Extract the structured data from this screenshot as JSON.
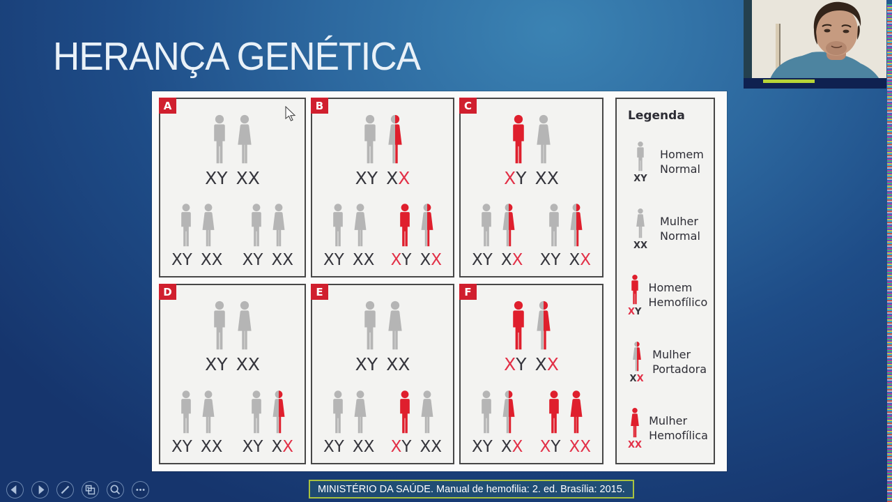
{
  "slide": {
    "title": "HERANÇA GENÉTICA",
    "citation": "MINISTÉRIO DA SAÚDE. Manual de hemofilia: 2. ed. Brasília: 2015."
  },
  "colors": {
    "figure_gray": "#b5b5b5",
    "figure_red": "#df1f2d",
    "chrom_dark": "#35353c",
    "chrom_red": "#e23047",
    "tag_red": "#d01f2e",
    "citation_border": "#a9c23f",
    "webcam_shirt": "#4d84a0",
    "webcam_wall": "#e9e5db",
    "webcam_indicator_green": "#b7d437"
  },
  "diagram": {
    "panels": [
      {
        "label": "A",
        "parents": [
          {
            "sex": "man",
            "variant": "normal",
            "chrom": "XY",
            "red": []
          },
          {
            "sex": "woman",
            "variant": "normal",
            "chrom": "XX",
            "red": []
          }
        ],
        "children": [
          [
            {
              "sex": "man",
              "variant": "normal",
              "chrom": "XY",
              "red": []
            },
            {
              "sex": "woman",
              "variant": "normal",
              "chrom": "XX",
              "red": []
            }
          ],
          [
            {
              "sex": "man",
              "variant": "normal",
              "chrom": "XY",
              "red": []
            },
            {
              "sex": "woman",
              "variant": "normal",
              "chrom": "XX",
              "red": []
            }
          ]
        ]
      },
      {
        "label": "B",
        "parents": [
          {
            "sex": "man",
            "variant": "normal",
            "chrom": "XY",
            "red": []
          },
          {
            "sex": "woman",
            "variant": "carrier",
            "chrom": "XX",
            "red": [
              1
            ]
          }
        ],
        "children": [
          [
            {
              "sex": "man",
              "variant": "normal",
              "chrom": "XY",
              "red": []
            },
            {
              "sex": "woman",
              "variant": "normal",
              "chrom": "XX",
              "red": []
            }
          ],
          [
            {
              "sex": "man",
              "variant": "affected",
              "chrom": "XY",
              "red": [
                0
              ]
            },
            {
              "sex": "woman",
              "variant": "carrier",
              "chrom": "XX",
              "red": [
                1
              ]
            }
          ]
        ]
      },
      {
        "label": "C",
        "parents": [
          {
            "sex": "man",
            "variant": "affected",
            "chrom": "XY",
            "red": [
              0
            ]
          },
          {
            "sex": "woman",
            "variant": "normal",
            "chrom": "XX",
            "red": []
          }
        ],
        "children": [
          [
            {
              "sex": "man",
              "variant": "normal",
              "chrom": "XY",
              "red": []
            },
            {
              "sex": "woman",
              "variant": "carrier",
              "chrom": "XX",
              "red": [
                1
              ]
            }
          ],
          [
            {
              "sex": "man",
              "variant": "normal",
              "chrom": "XY",
              "red": []
            },
            {
              "sex": "woman",
              "variant": "carrier",
              "chrom": "XX",
              "red": [
                1
              ]
            }
          ]
        ]
      },
      {
        "label": "D",
        "parents": [
          {
            "sex": "man",
            "variant": "normal",
            "chrom": "XY",
            "red": []
          },
          {
            "sex": "woman",
            "variant": "normal",
            "chrom": "XX",
            "red": []
          }
        ],
        "children": [
          [
            {
              "sex": "man",
              "variant": "normal",
              "chrom": "XY",
              "red": []
            },
            {
              "sex": "woman",
              "variant": "normal",
              "chrom": "XX",
              "red": []
            }
          ],
          [
            {
              "sex": "man",
              "variant": "normal",
              "chrom": "XY",
              "red": []
            },
            {
              "sex": "woman",
              "variant": "carrier",
              "chrom": "XX",
              "red": [
                1
              ]
            }
          ]
        ]
      },
      {
        "label": "E",
        "parents": [
          {
            "sex": "man",
            "variant": "normal",
            "chrom": "XY",
            "red": []
          },
          {
            "sex": "woman",
            "variant": "normal",
            "chrom": "XX",
            "red": []
          }
        ],
        "children": [
          [
            {
              "sex": "man",
              "variant": "normal",
              "chrom": "XY",
              "red": []
            },
            {
              "sex": "woman",
              "variant": "normal",
              "chrom": "XX",
              "red": []
            }
          ],
          [
            {
              "sex": "man",
              "variant": "affected",
              "chrom": "XY",
              "red": [
                0
              ]
            },
            {
              "sex": "woman",
              "variant": "normal",
              "chrom": "XX",
              "red": []
            }
          ]
        ]
      },
      {
        "label": "F",
        "parents": [
          {
            "sex": "man",
            "variant": "affected",
            "chrom": "XY",
            "red": [
              0
            ]
          },
          {
            "sex": "woman",
            "variant": "carrier",
            "chrom": "XX",
            "red": [
              1
            ]
          }
        ],
        "children": [
          [
            {
              "sex": "man",
              "variant": "normal",
              "chrom": "XY",
              "red": []
            },
            {
              "sex": "woman",
              "variant": "carrier",
              "chrom": "XX",
              "red": [
                1
              ]
            }
          ],
          [
            {
              "sex": "man",
              "variant": "affected",
              "chrom": "XY",
              "red": [
                0
              ]
            },
            {
              "sex": "woman",
              "variant": "affected",
              "chrom": "XX",
              "red": [
                0,
                1
              ]
            }
          ]
        ]
      }
    ],
    "legend": {
      "title": "Legenda",
      "entries": [
        {
          "person": {
            "sex": "man",
            "variant": "normal",
            "chrom": "XY",
            "red": []
          },
          "label_lines": [
            "Homem",
            "Normal"
          ]
        },
        {
          "person": {
            "sex": "woman",
            "variant": "normal",
            "chrom": "XX",
            "red": []
          },
          "label_lines": [
            "Mulher",
            "Normal"
          ]
        },
        {
          "person": {
            "sex": "man",
            "variant": "affected",
            "chrom": "XY",
            "red": [
              0
            ]
          },
          "label_lines": [
            "Homem",
            "Hemofílico"
          ]
        },
        {
          "person": {
            "sex": "woman",
            "variant": "carrier",
            "chrom": "XX",
            "red": [
              1
            ]
          },
          "label_lines": [
            "Mulher",
            "Portadora"
          ]
        },
        {
          "person": {
            "sex": "woman",
            "variant": "affected",
            "chrom": "XX",
            "red": [
              0,
              1
            ]
          },
          "label_lines": [
            "Mulher",
            "Hemofílica"
          ]
        }
      ]
    }
  },
  "toolbar": {
    "buttons": [
      {
        "name": "previous-slide-button",
        "icon": "arrow-left-icon"
      },
      {
        "name": "next-slide-button",
        "icon": "arrow-right-icon"
      },
      {
        "name": "pen-annotate-button",
        "icon": "pen-icon"
      },
      {
        "name": "see-all-slides-button",
        "icon": "slides-grid-icon"
      },
      {
        "name": "zoom-slide-button",
        "icon": "magnifier-icon"
      },
      {
        "name": "more-options-button",
        "icon": "ellipsis-icon"
      }
    ]
  }
}
